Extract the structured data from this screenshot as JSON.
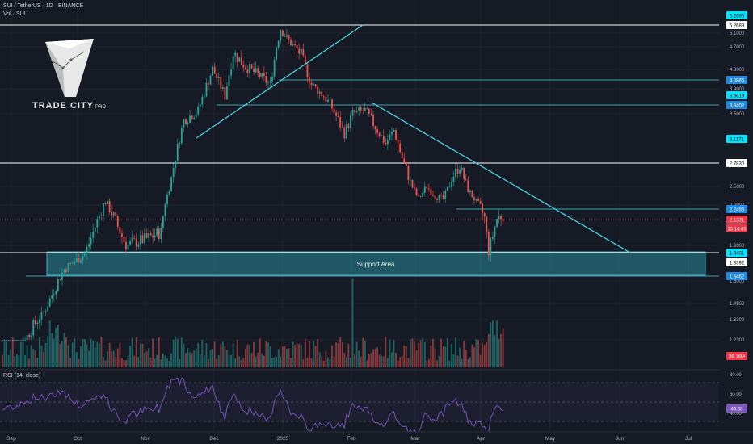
{
  "header": {
    "symbol_line": "SUI / TetherUS · 1D · BINANCE",
    "vol_line": "Vol · SUI",
    "rsi_line": "RSI (14, close)"
  },
  "logo": {
    "name": "TRADE CITY",
    "suffix": "PRO"
  },
  "support_label": "Support Area",
  "price_axis": {
    "ticks": [
      "5.1000",
      "4.7000",
      "4.3000",
      "3.9000",
      "3.5000",
      "2.5000",
      "2.2000",
      "1.9000",
      "1.6000",
      "1.4500",
      "1.3300",
      "1.2300"
    ],
    "badges": [
      {
        "text": "5.2696",
        "style": "cyan"
      },
      {
        "text": "5.2689",
        "style": "white"
      },
      {
        "text": "4.0866",
        "style": "blue"
      },
      {
        "text": "3.6619",
        "style": "cyan"
      },
      {
        "text": "3.6402",
        "style": "blue"
      },
      {
        "text": "3.1171",
        "style": "cyan"
      },
      {
        "text": "2.7830",
        "style": "white"
      },
      {
        "text": "2.2495",
        "style": "blue"
      },
      {
        "text": "2.1331",
        "style": "red"
      },
      {
        "text": "13:14:45",
        "style": "red-sub"
      },
      {
        "text": "1.8401",
        "style": "cyan"
      },
      {
        "text": "1.8392",
        "style": "white"
      },
      {
        "text": "1.6462",
        "style": "blue"
      },
      {
        "text": "36.16M",
        "style": "red"
      }
    ]
  },
  "rsi_axis": {
    "ticks": [
      "80.00",
      "60.00",
      "40.00"
    ],
    "value": "44.53"
  },
  "time_axis": [
    "Sep",
    "Oct",
    "Nov",
    "Dec",
    "2025",
    "Feb",
    "Mar",
    "Apr",
    "May",
    "Jun",
    "Jul"
  ],
  "colors": {
    "up": "#26a69a",
    "down": "#ef5350",
    "cyan": "#4dd0e1",
    "support": "#2a8a99",
    "rsi": "#7e57c2",
    "bg": "#161a25"
  }
}
